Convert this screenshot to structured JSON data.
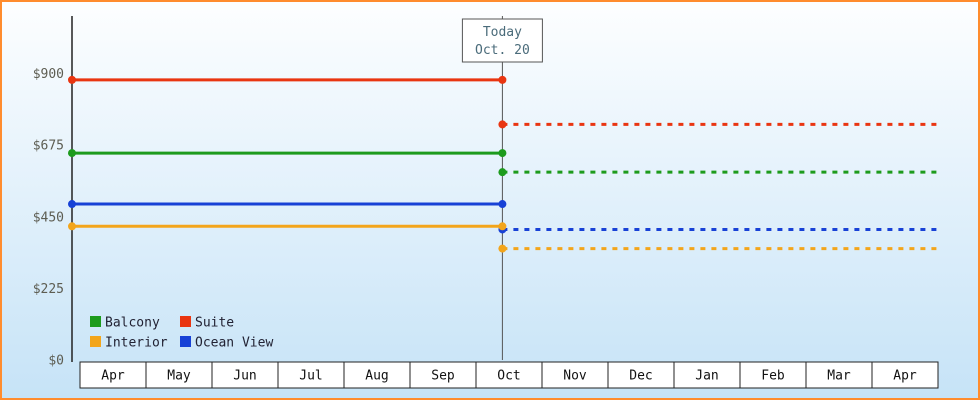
{
  "colors": {
    "border": "#ff8c2e",
    "background_top": "#fdfeff",
    "background_bottom": "#c6e3f7",
    "axis": "#222222",
    "today_line": "#555555",
    "box_fill": "#ffffff",
    "box_stroke": "#222222",
    "tick_label": "#5d5d52",
    "month_label": "#111111",
    "today_text": "#4a6b7a",
    "legend_text": "#222233"
  },
  "chart_data": {
    "type": "line",
    "title": "",
    "xlabel": "",
    "ylabel": "",
    "ylim": [
      0,
      1080
    ],
    "grid": false,
    "legend_position": "bottom-left-inside",
    "today": {
      "line1": "Today",
      "line2": "Oct. 20",
      "month_index": 6,
      "month_fraction": 0.4
    },
    "months": [
      "Apr",
      "May",
      "Jun",
      "Jul",
      "Aug",
      "Sep",
      "Oct",
      "Nov",
      "Dec",
      "Jan",
      "Feb",
      "Mar",
      "Apr"
    ],
    "y_ticks": [
      {
        "label": "$0",
        "value": 0
      },
      {
        "label": "$225",
        "value": 225
      },
      {
        "label": "$450",
        "value": 450
      },
      {
        "label": "$675",
        "value": 675
      },
      {
        "label": "$900",
        "value": 900
      }
    ],
    "series": [
      {
        "name": "Suite",
        "color": "#e93511",
        "current_price": 880,
        "forecast_price": 740
      },
      {
        "name": "Balcony",
        "color": "#1d9b1d",
        "current_price": 650,
        "forecast_price": 590
      },
      {
        "name": "Ocean View",
        "color": "#1741d6",
        "current_price": 490,
        "forecast_price": 410
      },
      {
        "name": "Interior",
        "color": "#f3a51b",
        "current_price": 420,
        "forecast_price": 350
      }
    ],
    "legend_rows": [
      [
        "Balcony",
        "Suite"
      ],
      [
        "Interior",
        "Ocean View"
      ]
    ]
  }
}
